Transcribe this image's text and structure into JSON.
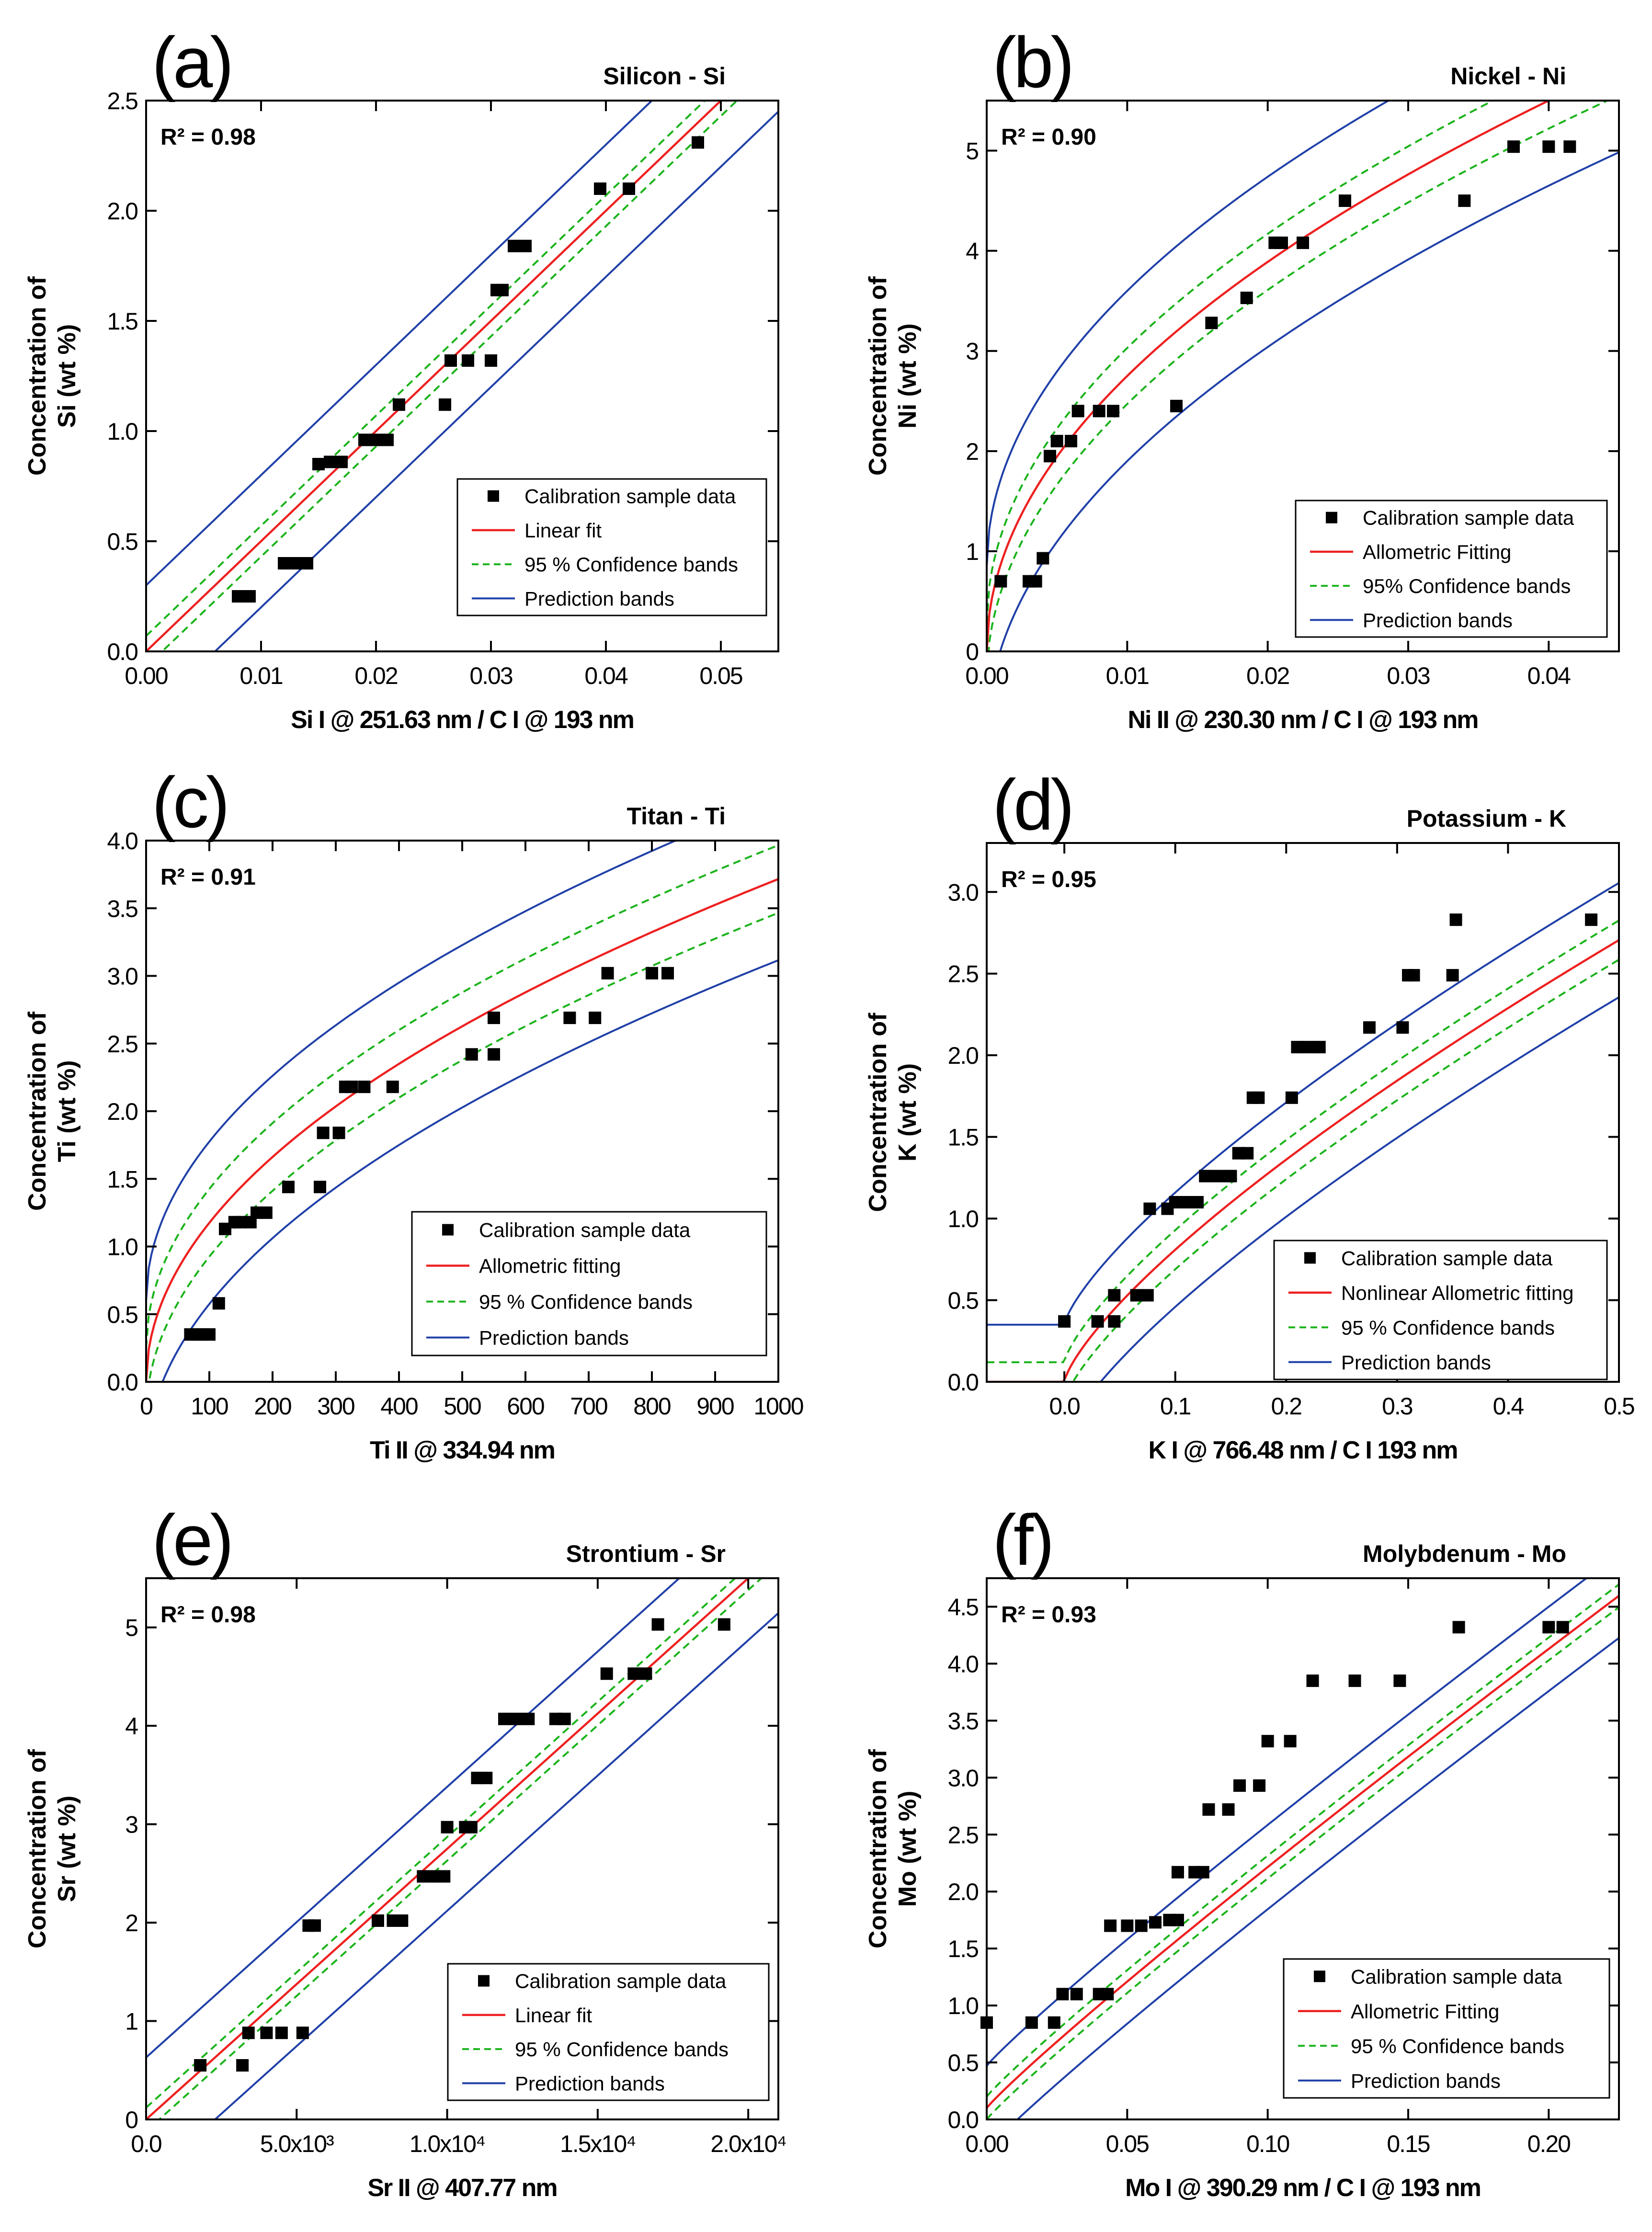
{
  "figure": {
    "description_panels": 6
  },
  "chart_data": [
    {
      "type": "scatter",
      "panel_label": "(a)",
      "element": "Silicon - Si",
      "r2": "R² = 0.98",
      "xlabel": "Si I @ 251.63 nm / C I @ 193 nm",
      "ylabel_1": "Concentration of",
      "ylabel_2": "Si  (wt %)",
      "xlim": [
        0,
        0.055
      ],
      "ylim": [
        0,
        2.5
      ],
      "xticks": [
        0,
        0.01,
        0.02,
        0.03,
        0.04,
        0.05
      ],
      "xtick_labels": [
        "0.00",
        "0.01",
        "0.02",
        "0.03",
        "0.04",
        "0.05"
      ],
      "yticks": [
        0,
        0.5,
        1.0,
        1.5,
        2.0,
        2.5
      ],
      "ytick_labels": [
        "0.0",
        "0.5",
        "1.0",
        "1.5",
        "2.0",
        "2.5"
      ],
      "legend": [
        "Calibration sample data",
        "Linear fit",
        "95 % Confidence bands",
        "Prediction bands"
      ],
      "fit": {
        "model": "linear",
        "a": 0,
        "b": 50,
        "p": 1,
        "conf": 0.07,
        "pred": 0.3
      },
      "points": [
        [
          0.008,
          0.25
        ],
        [
          0.009,
          0.25
        ],
        [
          0.012,
          0.4
        ],
        [
          0.013,
          0.4
        ],
        [
          0.014,
          0.4
        ],
        [
          0.015,
          0.85
        ],
        [
          0.016,
          0.86
        ],
        [
          0.017,
          0.86
        ],
        [
          0.019,
          0.96
        ],
        [
          0.02,
          0.96
        ],
        [
          0.021,
          0.96
        ],
        [
          0.022,
          1.12
        ],
        [
          0.026,
          1.12
        ],
        [
          0.0265,
          1.32
        ],
        [
          0.028,
          1.32
        ],
        [
          0.03,
          1.32
        ],
        [
          0.0305,
          1.64
        ],
        [
          0.031,
          1.64
        ],
        [
          0.032,
          1.84
        ],
        [
          0.033,
          1.84
        ],
        [
          0.0395,
          2.1
        ],
        [
          0.042,
          2.1
        ],
        [
          0.048,
          2.31
        ]
      ]
    },
    {
      "type": "scatter",
      "panel_label": "(b)",
      "element": "Nickel - Ni",
      "r2": "R² = 0.90",
      "xlabel": "Ni II @ 230.30 nm  / C I @ 193 nm",
      "ylabel_1": "Concentration of",
      "ylabel_2": "Ni  (wt %)",
      "xlim": [
        0,
        0.045
      ],
      "ylim": [
        0,
        5.5
      ],
      "xticks": [
        0,
        0.01,
        0.02,
        0.03,
        0.04
      ],
      "xtick_labels": [
        "0.00",
        "0.01",
        "0.02",
        "0.03",
        "0.04"
      ],
      "yticks": [
        0,
        1,
        2,
        3,
        4,
        5
      ],
      "ytick_labels": [
        "0",
        "1",
        "2",
        "3",
        "4",
        "5"
      ],
      "legend": [
        "Calibration sample data",
        "Allometric Fitting",
        "95% Confidence bands",
        "Prediction bands"
      ],
      "fit": {
        "model": "power",
        "a": 0,
        "b": 27.5,
        "p": 0.5,
        "conf": 0.28,
        "pred": 0.85
      },
      "points": [
        [
          0.001,
          0.7
        ],
        [
          0.003,
          0.7
        ],
        [
          0.0035,
          0.7
        ],
        [
          0.004,
          0.93
        ],
        [
          0.0045,
          1.95
        ],
        [
          0.005,
          2.1
        ],
        [
          0.006,
          2.1
        ],
        [
          0.0065,
          2.4
        ],
        [
          0.008,
          2.4
        ],
        [
          0.009,
          2.4
        ],
        [
          0.0135,
          2.45
        ],
        [
          0.016,
          3.28
        ],
        [
          0.0185,
          3.53
        ],
        [
          0.0205,
          4.08
        ],
        [
          0.021,
          4.08
        ],
        [
          0.0225,
          4.08
        ],
        [
          0.0255,
          4.5
        ],
        [
          0.034,
          4.5
        ],
        [
          0.0375,
          5.04
        ],
        [
          0.04,
          5.04
        ],
        [
          0.0415,
          5.04
        ]
      ]
    },
    {
      "type": "scatter",
      "panel_label": "(c)",
      "element": "Titan - Ti",
      "r2": "R² = 0.91",
      "xlabel": "Ti II @ 334.94 nm",
      "ylabel_1": "Concentration of",
      "ylabel_2": "Ti  (wt %)",
      "xlim": [
        0,
        1000
      ],
      "ylim": [
        0,
        4.0
      ],
      "xticks": [
        0,
        100,
        200,
        300,
        400,
        500,
        600,
        700,
        800,
        900,
        1000
      ],
      "xtick_labels": [
        "0",
        "100",
        "200",
        "300",
        "400",
        "500",
        "600",
        "700",
        "800",
        "900",
        "1000"
      ],
      "yticks": [
        0,
        0.5,
        1.0,
        1.5,
        2.0,
        2.5,
        3.0,
        3.5,
        4.0
      ],
      "ytick_labels": [
        "0.0",
        "0.5",
        "1.0",
        "1.5",
        "2.0",
        "2.5",
        "3.0",
        "3.5",
        "4.0"
      ],
      "legend": [
        "Calibration sample data",
        "Allometric fitting",
        "95 % Confidence bands",
        "Prediction bands"
      ],
      "fit": {
        "model": "power",
        "a": 0,
        "b": 0.1175,
        "p": 0.5,
        "conf": 0.25,
        "pred": 0.6
      },
      "points": [
        [
          70,
          0.35
        ],
        [
          80,
          0.35
        ],
        [
          90,
          0.35
        ],
        [
          100,
          0.35
        ],
        [
          115,
          0.58
        ],
        [
          125,
          1.13
        ],
        [
          140,
          1.18
        ],
        [
          150,
          1.18
        ],
        [
          165,
          1.18
        ],
        [
          175,
          1.25
        ],
        [
          190,
          1.25
        ],
        [
          225,
          1.44
        ],
        [
          275,
          1.44
        ],
        [
          280,
          1.84
        ],
        [
          305,
          1.84
        ],
        [
          315,
          2.18
        ],
        [
          325,
          2.18
        ],
        [
          345,
          2.18
        ],
        [
          390,
          2.18
        ],
        [
          515,
          2.42
        ],
        [
          550,
          2.42
        ],
        [
          550,
          2.69
        ],
        [
          670,
          2.69
        ],
        [
          710,
          2.69
        ],
        [
          730,
          3.02
        ],
        [
          800,
          3.02
        ],
        [
          825,
          3.02
        ]
      ]
    },
    {
      "type": "scatter",
      "panel_label": "(d)",
      "element": "Potassium - K",
      "r2": "R² = 0.95",
      "xlabel": "K I @ 766.48 nm  /  C I 193 nm",
      "ylabel_1": "Concentration of",
      "ylabel_2": "K  (wt %)",
      "xlim": [
        -0.07,
        0.5
      ],
      "ylim": [
        0,
        3.3
      ],
      "xticks": [
        0,
        0.1,
        0.2,
        0.3,
        0.4,
        0.5
      ],
      "xtick_labels": [
        "0.0",
        "0.1",
        "0.2",
        "0.3",
        "0.4",
        "0.5"
      ],
      "yticks": [
        0,
        0.5,
        1.0,
        1.5,
        2.0,
        2.5,
        3.0
      ],
      "ytick_labels": [
        "0.0",
        "0.5",
        "1.0",
        "1.5",
        "2.0",
        "2.5",
        "3.0"
      ],
      "legend": [
        "Calibration sample data",
        "Nonlinear Allometric fitting",
        "95 % Confidence bands",
        "Prediction bands"
      ],
      "fit": {
        "model": "power",
        "a": 0,
        "b": 4.55,
        "p": 0.75,
        "conf": 0.12,
        "pred": 0.35
      },
      "points": [
        [
          0.0,
          0.37
        ],
        [
          0.03,
          0.37
        ],
        [
          0.045,
          0.37
        ],
        [
          0.045,
          0.53
        ],
        [
          0.065,
          0.53
        ],
        [
          0.075,
          0.53
        ],
        [
          0.077,
          1.06
        ],
        [
          0.093,
          1.06
        ],
        [
          0.1,
          1.1
        ],
        [
          0.11,
          1.1
        ],
        [
          0.12,
          1.1
        ],
        [
          0.127,
          1.26
        ],
        [
          0.135,
          1.26
        ],
        [
          0.145,
          1.26
        ],
        [
          0.15,
          1.26
        ],
        [
          0.157,
          1.4
        ],
        [
          0.165,
          1.4
        ],
        [
          0.17,
          1.74
        ],
        [
          0.175,
          1.74
        ],
        [
          0.205,
          1.74
        ],
        [
          0.21,
          2.05
        ],
        [
          0.22,
          2.05
        ],
        [
          0.23,
          2.05
        ],
        [
          0.275,
          2.17
        ],
        [
          0.305,
          2.17
        ],
        [
          0.31,
          2.49
        ],
        [
          0.315,
          2.49
        ],
        [
          0.35,
          2.49
        ],
        [
          0.353,
          2.83
        ],
        [
          0.475,
          2.83
        ]
      ]
    },
    {
      "type": "scatter",
      "panel_label": "(e)",
      "element": "Strontium - Sr",
      "r2": "R² = 0.98",
      "xlabel": "Sr II @ 407.77 nm",
      "ylabel_1": "Concentration of",
      "ylabel_2": "Sr  (wt %)",
      "xlim": [
        0,
        21000
      ],
      "ylim": [
        0,
        5.5
      ],
      "xticks": [
        0,
        5000,
        10000,
        15000,
        20000
      ],
      "xtick_labels": [
        "0.0",
        "5.0x10³",
        "1.0x10⁴",
        "1.5x10⁴",
        "2.0x10⁴"
      ],
      "yticks": [
        0,
        1,
        2,
        3,
        4,
        5
      ],
      "ytick_labels": [
        "0",
        "1",
        "2",
        "3",
        "4",
        "5"
      ],
      "legend": [
        "Calibration sample data",
        "Linear fit",
        "95 % Confidence bands",
        "Prediction bands"
      ],
      "fit": {
        "model": "linear",
        "a": 0,
        "b": 0.000275,
        "p": 1,
        "conf": 0.12,
        "pred": 0.63
      },
      "points": [
        [
          1800,
          0.55
        ],
        [
          3200,
          0.55
        ],
        [
          3400,
          0.88
        ],
        [
          4000,
          0.88
        ],
        [
          4500,
          0.88
        ],
        [
          5200,
          0.88
        ],
        [
          5400,
          1.97
        ],
        [
          5600,
          1.97
        ],
        [
          7700,
          2.02
        ],
        [
          8200,
          2.02
        ],
        [
          8500,
          2.02
        ],
        [
          9200,
          2.47
        ],
        [
          9600,
          2.47
        ],
        [
          9900,
          2.47
        ],
        [
          10000,
          2.97
        ],
        [
          10600,
          2.97
        ],
        [
          10800,
          2.97
        ],
        [
          11000,
          3.47
        ],
        [
          11300,
          3.47
        ],
        [
          11900,
          4.07
        ],
        [
          12300,
          4.07
        ],
        [
          12700,
          4.07
        ],
        [
          13600,
          4.07
        ],
        [
          13900,
          4.07
        ],
        [
          15300,
          4.53
        ],
        [
          16200,
          4.53
        ],
        [
          16600,
          4.53
        ],
        [
          17000,
          5.03
        ],
        [
          19200,
          5.03
        ]
      ]
    },
    {
      "type": "scatter",
      "panel_label": "(f)",
      "element": "Molybdenum - Mo",
      "r2": "R² = 0.93",
      "xlabel": "Mo I @ 390.29 nm / C I @ 193 nm",
      "ylabel_1": "Concentration of",
      "ylabel_2": "Mo  (wt %)",
      "xlim": [
        0,
        0.225
      ],
      "ylim": [
        0,
        4.75
      ],
      "xticks": [
        0,
        0.05,
        0.1,
        0.15,
        0.2
      ],
      "xtick_labels": [
        "0.00",
        "0.05",
        "0.10",
        "0.15",
        "0.20"
      ],
      "yticks": [
        0,
        0.5,
        1.0,
        1.5,
        2.0,
        2.5,
        3.0,
        3.5,
        4.0,
        4.5
      ],
      "ytick_labels": [
        "0.0",
        "0.5",
        "1.0",
        "1.5",
        "2.0",
        "2.5",
        "3.0",
        "3.5",
        "4.0",
        "4.5"
      ],
      "legend": [
        "Calibration sample data",
        "Allometric Fitting",
        "95 % Confidence bands",
        "Prediction bands"
      ],
      "fit": {
        "model": "power",
        "a": 0.1,
        "b": 18.0,
        "p": 0.93,
        "conf": 0.1,
        "pred": 0.37
      },
      "points": [
        [
          0.0,
          0.85
        ],
        [
          0.016,
          0.85
        ],
        [
          0.024,
          0.85
        ],
        [
          0.027,
          1.1
        ],
        [
          0.032,
          1.1
        ],
        [
          0.04,
          1.1
        ],
        [
          0.043,
          1.1
        ],
        [
          0.044,
          1.7
        ],
        [
          0.05,
          1.7
        ],
        [
          0.055,
          1.7
        ],
        [
          0.06,
          1.73
        ],
        [
          0.065,
          1.75
        ],
        [
          0.068,
          1.75
        ],
        [
          0.068,
          2.17
        ],
        [
          0.074,
          2.17
        ],
        [
          0.077,
          2.17
        ],
        [
          0.079,
          2.72
        ],
        [
          0.086,
          2.72
        ],
        [
          0.09,
          2.93
        ],
        [
          0.097,
          2.93
        ],
        [
          0.1,
          3.32
        ],
        [
          0.108,
          3.32
        ],
        [
          0.116,
          3.85
        ],
        [
          0.131,
          3.85
        ],
        [
          0.147,
          3.85
        ],
        [
          0.168,
          4.32
        ],
        [
          0.2,
          4.32
        ],
        [
          0.205,
          4.32
        ]
      ]
    }
  ]
}
